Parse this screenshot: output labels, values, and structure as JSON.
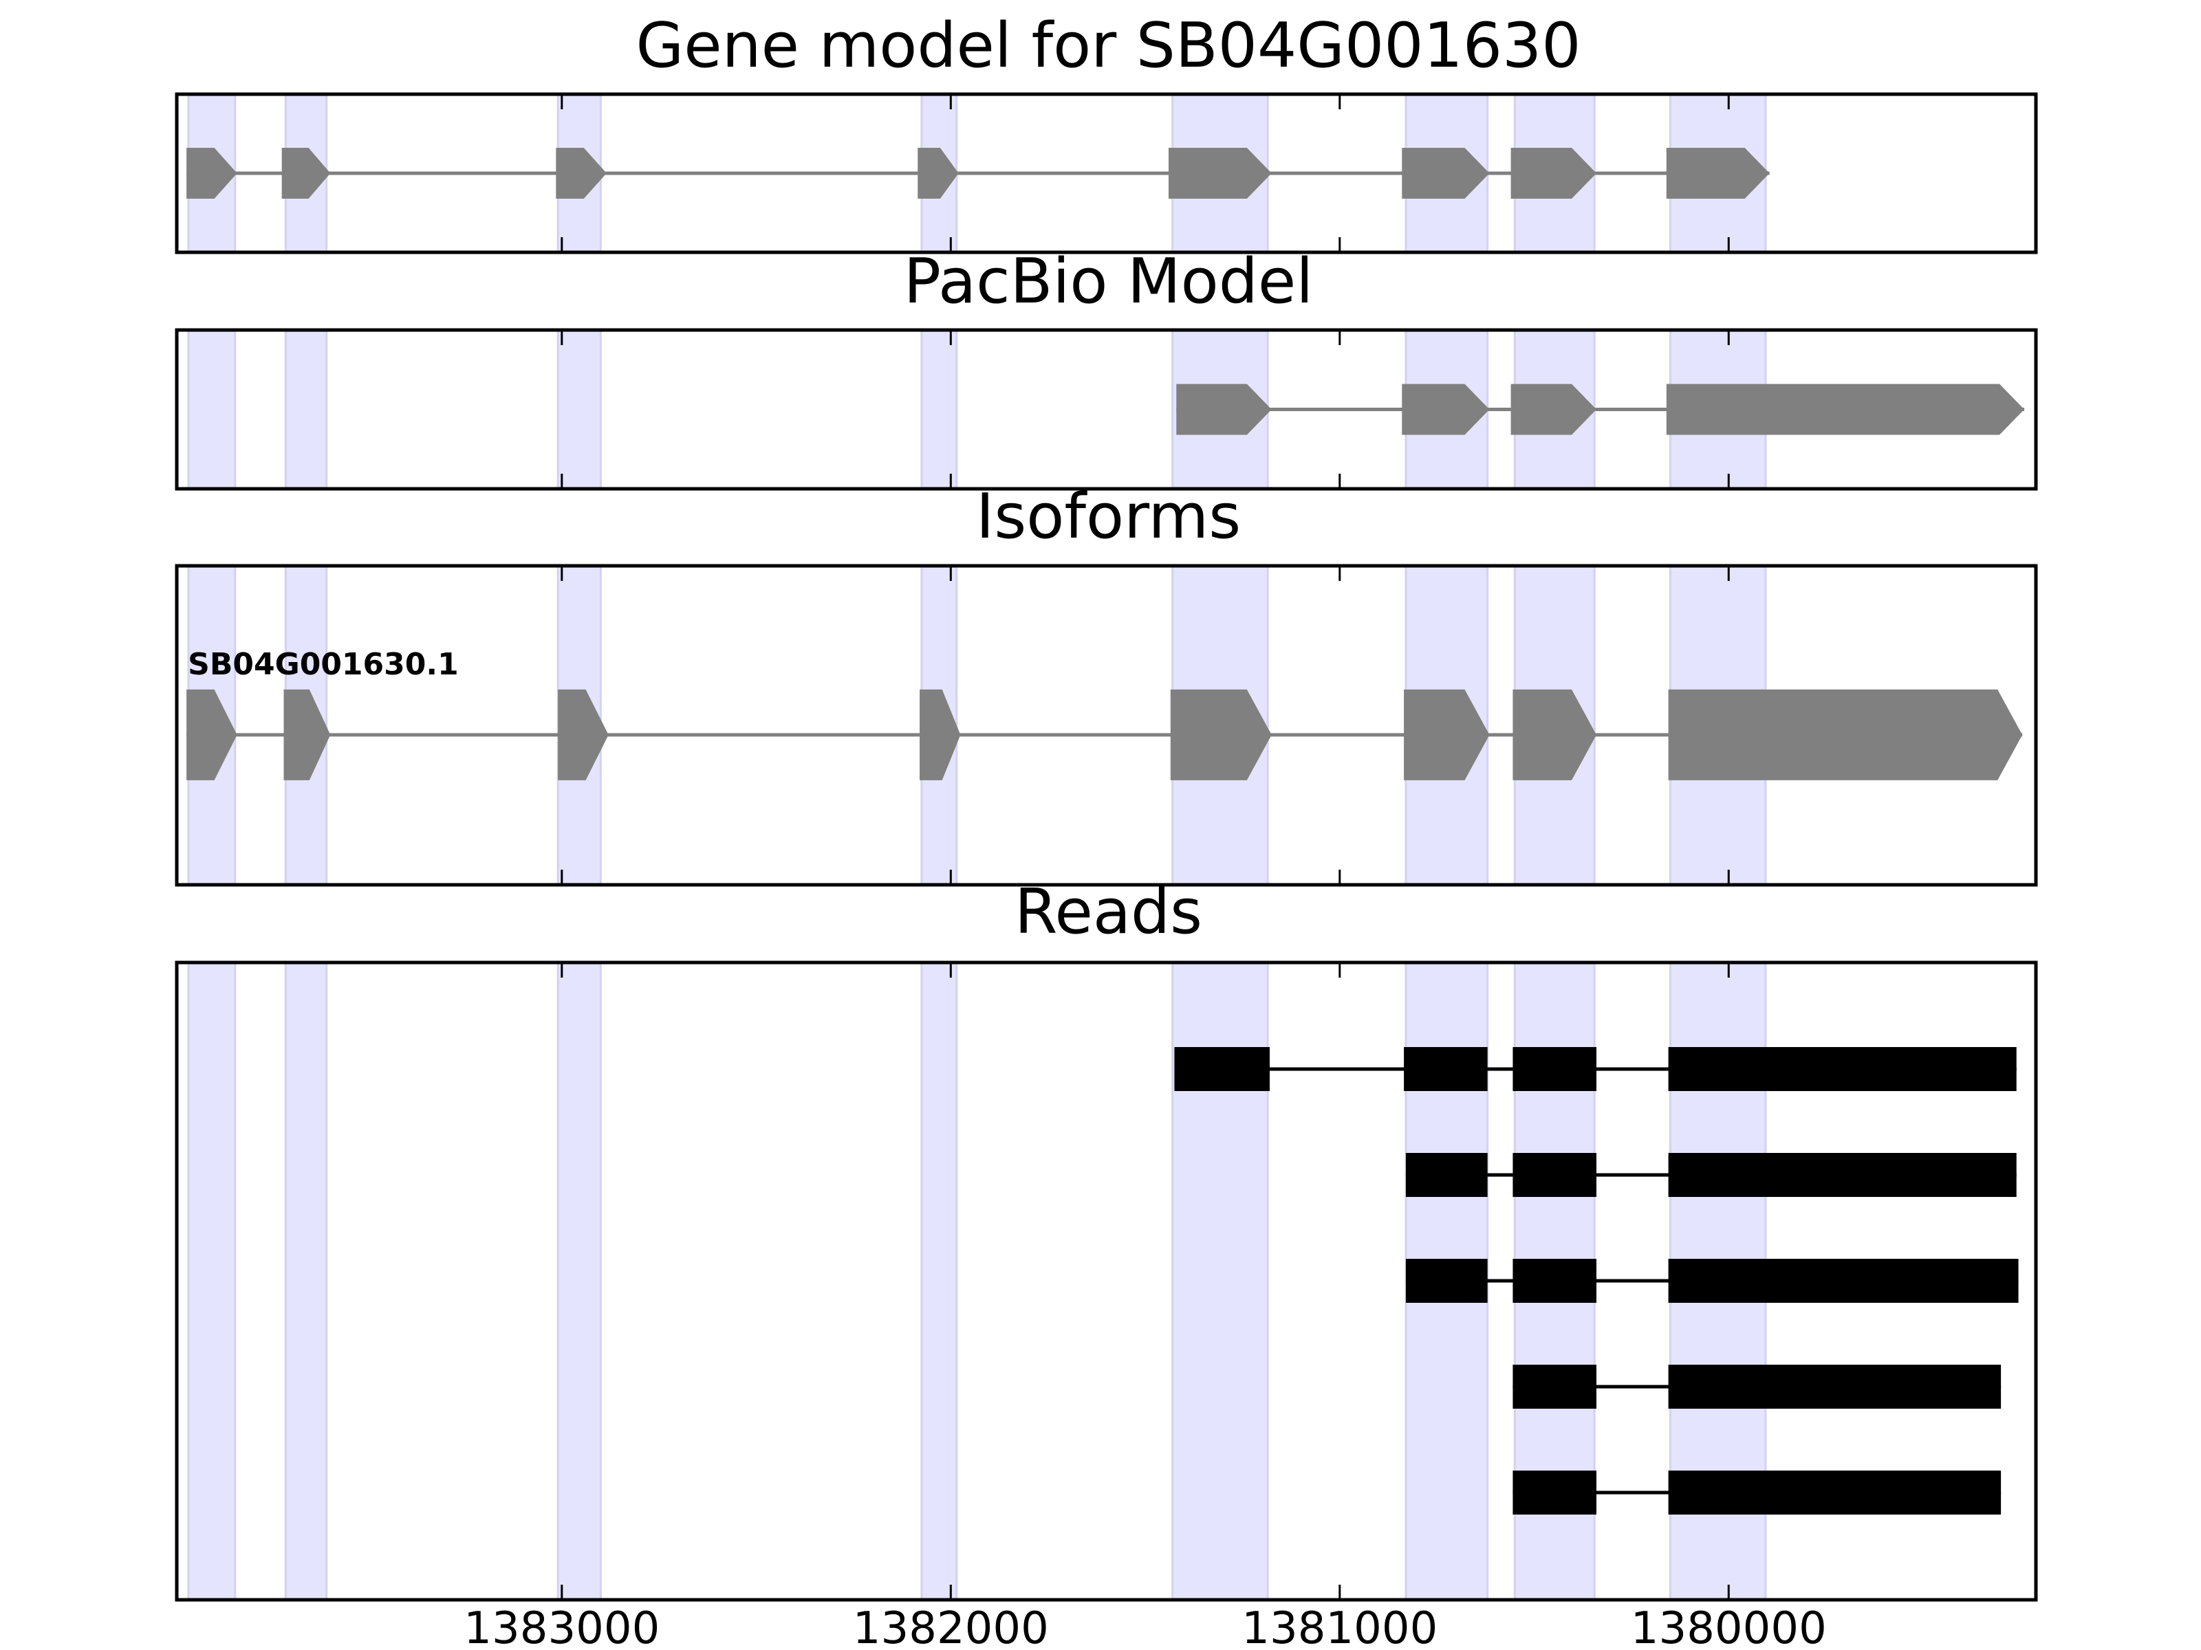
{
  "chart_data": {
    "type": "gene-structure",
    "x_reversed": true,
    "xlim": [
      1383990,
      1379210
    ],
    "xticks": [
      1383000,
      1382000,
      1381000,
      1380000
    ],
    "xtick_labels": [
      "1383000",
      "1382000",
      "1381000",
      "1380000"
    ],
    "grid": false,
    "colors": {
      "exon_shading": "#e4e4ff",
      "model_exon": "#808080",
      "intron_line": "#808080",
      "read_exon": "#000000",
      "read_intron": "#000000",
      "axes": "#000000"
    },
    "shaded_exon_regions": [
      [
        1383960,
        1383840
      ],
      [
        1383710,
        1383605
      ],
      [
        1383010,
        1382900
      ],
      [
        1382075,
        1381985
      ],
      [
        1381430,
        1381185
      ],
      [
        1380830,
        1380620
      ],
      [
        1380550,
        1380345
      ],
      [
        1380150,
        1379905
      ]
    ],
    "panels": [
      {
        "key": "gene_model",
        "title": "Gene model for SB04G001630",
        "kind": "model",
        "tracks": [
          {
            "label": "",
            "exons": [
              [
                1383965,
                1383835
              ],
              [
                1383720,
                1383595
              ],
              [
                1383015,
                1382885
              ],
              [
                1382085,
                1381980
              ],
              [
                1381440,
                1381175
              ],
              [
                1380840,
                1380615
              ],
              [
                1380560,
                1380340
              ],
              [
                1380160,
                1379895
              ]
            ]
          }
        ]
      },
      {
        "key": "pacbio",
        "title": "PacBio Model",
        "kind": "model",
        "tracks": [
          {
            "label": "",
            "exons": [
              [
                1381420,
                1381175
              ],
              [
                1380840,
                1380615
              ],
              [
                1380560,
                1380340
              ],
              [
                1380160,
                1379240
              ]
            ]
          }
        ]
      },
      {
        "key": "isoforms",
        "title": "Isoforms",
        "kind": "model",
        "tracks": [
          {
            "label": "SB04G001630.1",
            "exons": [
              [
                1383965,
                1383835
              ],
              [
                1383715,
                1383595
              ],
              [
                1383010,
                1382880
              ],
              [
                1382080,
                1381975
              ],
              [
                1381435,
                1381175
              ],
              [
                1380835,
                1380615
              ],
              [
                1380555,
                1380340
              ],
              [
                1380155,
                1379245
              ]
            ]
          }
        ]
      },
      {
        "key": "reads",
        "title": "Reads",
        "kind": "reads",
        "tracks": [
          {
            "exons": [
              [
                1381425,
                1381180
              ],
              [
                1380835,
                1380620
              ],
              [
                1380555,
                1380340
              ],
              [
                1380155,
                1379260
              ]
            ]
          },
          {
            "exons": [
              [
                1380830,
                1380620
              ],
              [
                1380555,
                1380340
              ],
              [
                1380155,
                1379260
              ]
            ]
          },
          {
            "exons": [
              [
                1380830,
                1380620
              ],
              [
                1380555,
                1380340
              ],
              [
                1380155,
                1379255
              ]
            ]
          },
          {
            "exons": [
              [
                1380555,
                1380340
              ],
              [
                1380155,
                1379300
              ]
            ]
          },
          {
            "exons": [
              [
                1380555,
                1380340
              ],
              [
                1380155,
                1379300
              ]
            ]
          }
        ]
      }
    ]
  }
}
